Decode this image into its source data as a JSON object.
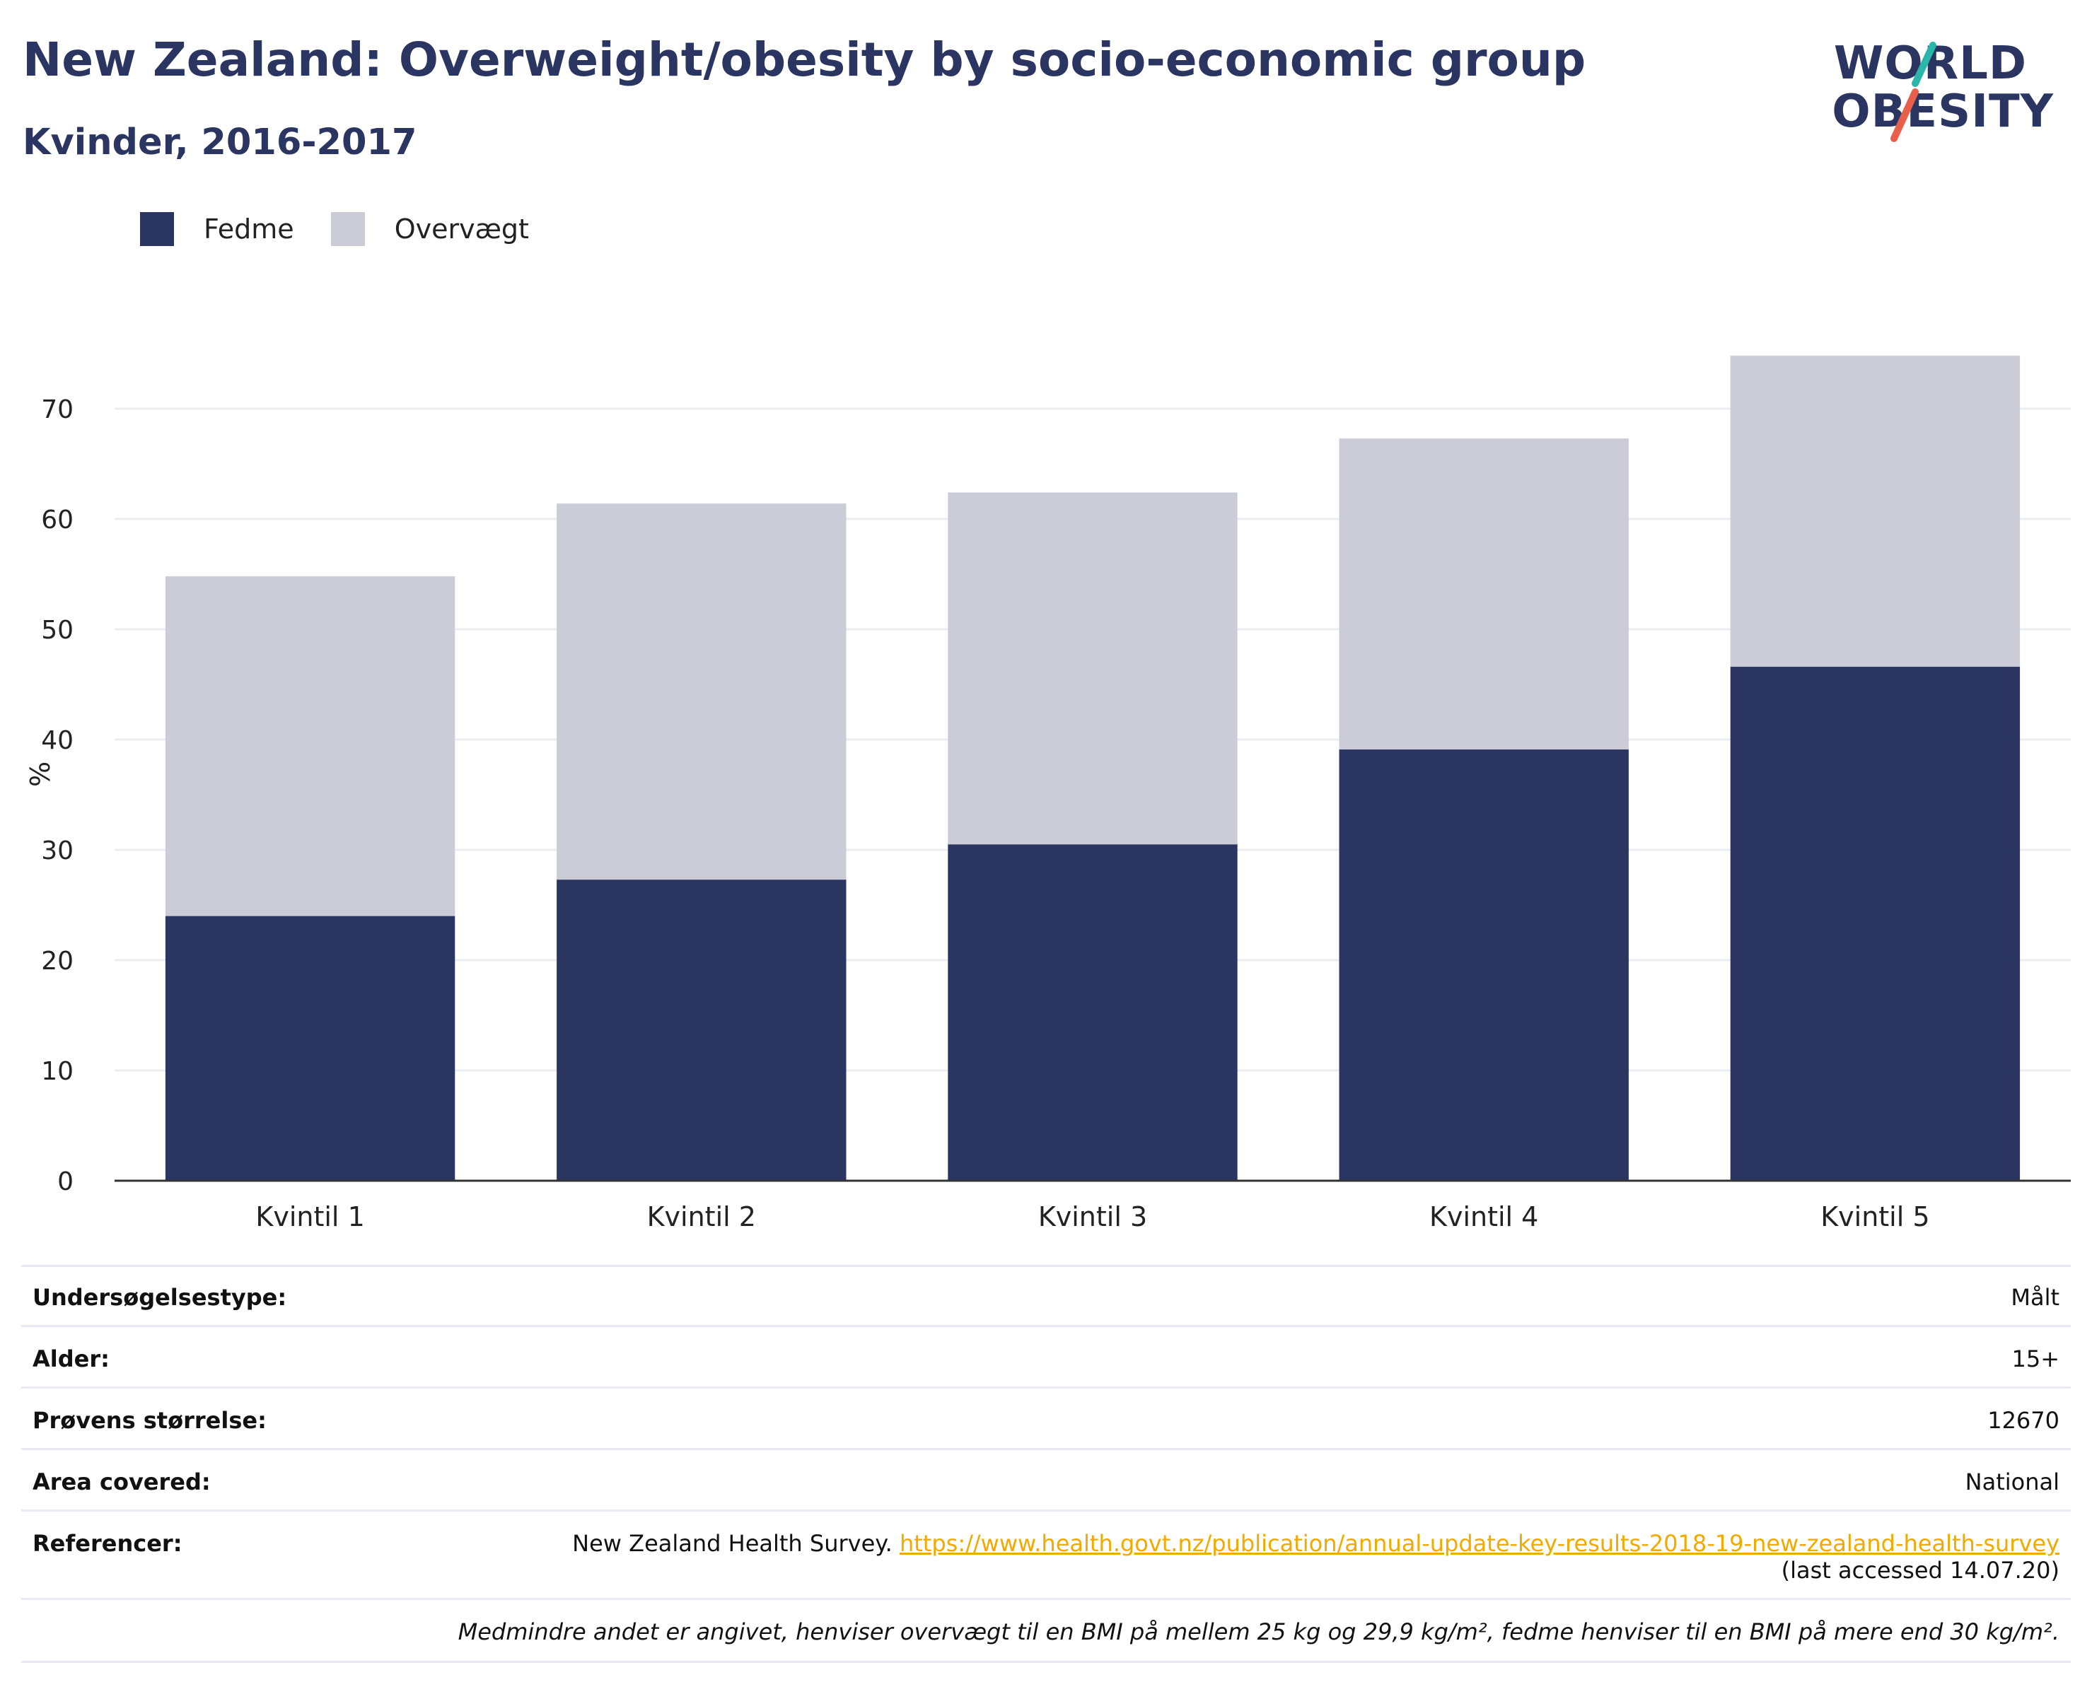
{
  "header": {
    "title": "New Zealand: Overweight/obesity by socio-economic group",
    "subtitle": "Kvinder, 2016-2017"
  },
  "logo": {
    "line1": "WORLD",
    "line2": "OBESITY",
    "slash_colors": [
      "#2bb6a9",
      "#e8604c"
    ]
  },
  "legend": [
    {
      "label": "Fedme",
      "color": "#2b3561"
    },
    {
      "label": "Overvægt",
      "color": "#cbccd8"
    }
  ],
  "chart_data": {
    "type": "bar",
    "stacked": true,
    "categories": [
      "Kvintil 1",
      "Kvintil 2",
      "Kvintil 3",
      "Kvintil 4",
      "Kvintil 5"
    ],
    "series": [
      {
        "name": "Fedme",
        "color": "#2b3561",
        "values": [
          24.0,
          27.3,
          30.5,
          39.1,
          46.6
        ]
      },
      {
        "name": "Overvægt",
        "color": "#cbccd8",
        "values": [
          30.8,
          34.1,
          31.9,
          28.2,
          28.2
        ]
      }
    ],
    "ylabel": "%",
    "xlabel": "",
    "ylim": [
      0,
      75
    ],
    "yticks": [
      0,
      10,
      20,
      30,
      40,
      50,
      60,
      70
    ],
    "grid": true,
    "legend_position": "top-left"
  },
  "meta": {
    "rows": [
      {
        "label": "Undersøgelsestype:",
        "value": "Målt"
      },
      {
        "label": "Alder:",
        "value": "15+"
      },
      {
        "label": "Prøvens størrelse:",
        "value": "12670"
      },
      {
        "label": "Area covered:",
        "value": "National"
      }
    ],
    "references": {
      "label": "Referencer:",
      "text": "New Zealand Health Survey.",
      "link": "https://www.health.govt.nz/publication/annual-update-key-results-2018-19-new-zealand-health-survey",
      "accessed": "(last accessed 14.07.20)"
    },
    "note": "Medmindre andet er angivet, henviser overvægt til en BMI på mellem 25 kg og 29,9 kg/m², fedme henviser til en BMI på mere end 30 kg/m²."
  }
}
